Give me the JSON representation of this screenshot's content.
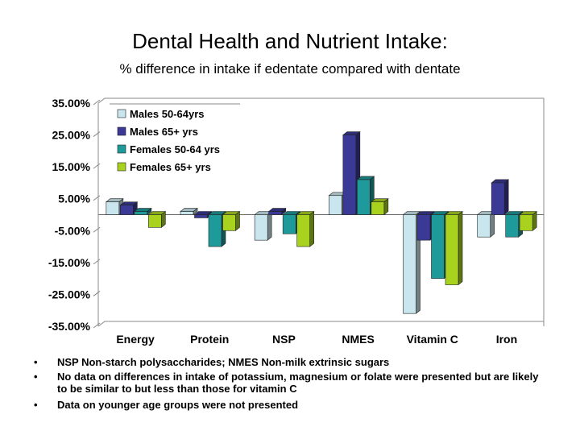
{
  "slide": {
    "title": "Dental Health and Nutrient Intake:",
    "subtitle": "% difference in intake if edentate compared with dentate",
    "bullet_char": "•",
    "notes": [
      "NSP Non-starch polysaccharides; NMES Non-milk extrinsic sugars",
      "No data on differences in intake of potassium, magnesium or folate were presented but are likely to be similar to but less than those for vitamin C",
      "Data on younger age groups were not presented"
    ]
  },
  "chart_data": {
    "type": "bar",
    "title": "",
    "xlabel": "",
    "ylabel": "",
    "ylim": [
      -0.35,
      0.35
    ],
    "yticks": [
      0.35,
      0.25,
      0.15,
      0.05,
      -0.05,
      -0.15,
      -0.25,
      -0.35
    ],
    "ytick_labels": [
      "35.00%",
      "25.00%",
      "15.00%",
      "5.00%",
      "-5.00%",
      "-15.00%",
      "-25.00%",
      "-35.00%"
    ],
    "categories": [
      "Energy",
      "Protein",
      "NSP",
      "NMES",
      "Vitamin C",
      "Iron"
    ],
    "series": [
      {
        "name": "Males 50-64yrs",
        "color": "#c9e6ee",
        "values": [
          0.04,
          0.01,
          -0.08,
          0.06,
          -0.31,
          -0.07
        ]
      },
      {
        "name": "Males 65+ yrs",
        "color": "#3a3a96",
        "values": [
          0.03,
          -0.01,
          0.01,
          0.25,
          -0.08,
          0.1
        ]
      },
      {
        "name": "Females 50-64 yrs",
        "color": "#1e9a9a",
        "values": [
          0.01,
          -0.1,
          -0.06,
          0.11,
          -0.2,
          -0.07
        ]
      },
      {
        "name": "Females 65+ yrs",
        "color": "#a8d21e",
        "values": [
          -0.04,
          -0.05,
          -0.1,
          0.04,
          -0.22,
          -0.05
        ]
      }
    ],
    "grid": false,
    "legend_position": "top-left",
    "style": "3d-bars"
  }
}
